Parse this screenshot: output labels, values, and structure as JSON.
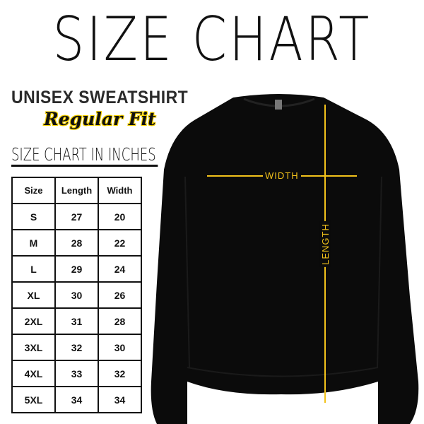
{
  "title": "SIZE CHART",
  "product": "UNISEX SWEATSHIRT",
  "fit": "Regular Fit",
  "chart_heading": "SIZE CHART IN INCHES",
  "table": {
    "headers": [
      "Size",
      "Length",
      "Width"
    ],
    "rows": [
      [
        "S",
        "27",
        "20"
      ],
      [
        "M",
        "28",
        "22"
      ],
      [
        "L",
        "29",
        "24"
      ],
      [
        "XL",
        "30",
        "26"
      ],
      [
        "2XL",
        "31",
        "28"
      ],
      [
        "3XL",
        "32",
        "30"
      ],
      [
        "4XL",
        "33",
        "32"
      ],
      [
        "5XL",
        "34",
        "34"
      ]
    ]
  },
  "measure": {
    "width_label": "WIDTH",
    "length_label": "LENGTH"
  },
  "colors": {
    "shirt": "#0b0b0b",
    "measure_lines": "#f2c21b",
    "accent": "#f4d000"
  }
}
